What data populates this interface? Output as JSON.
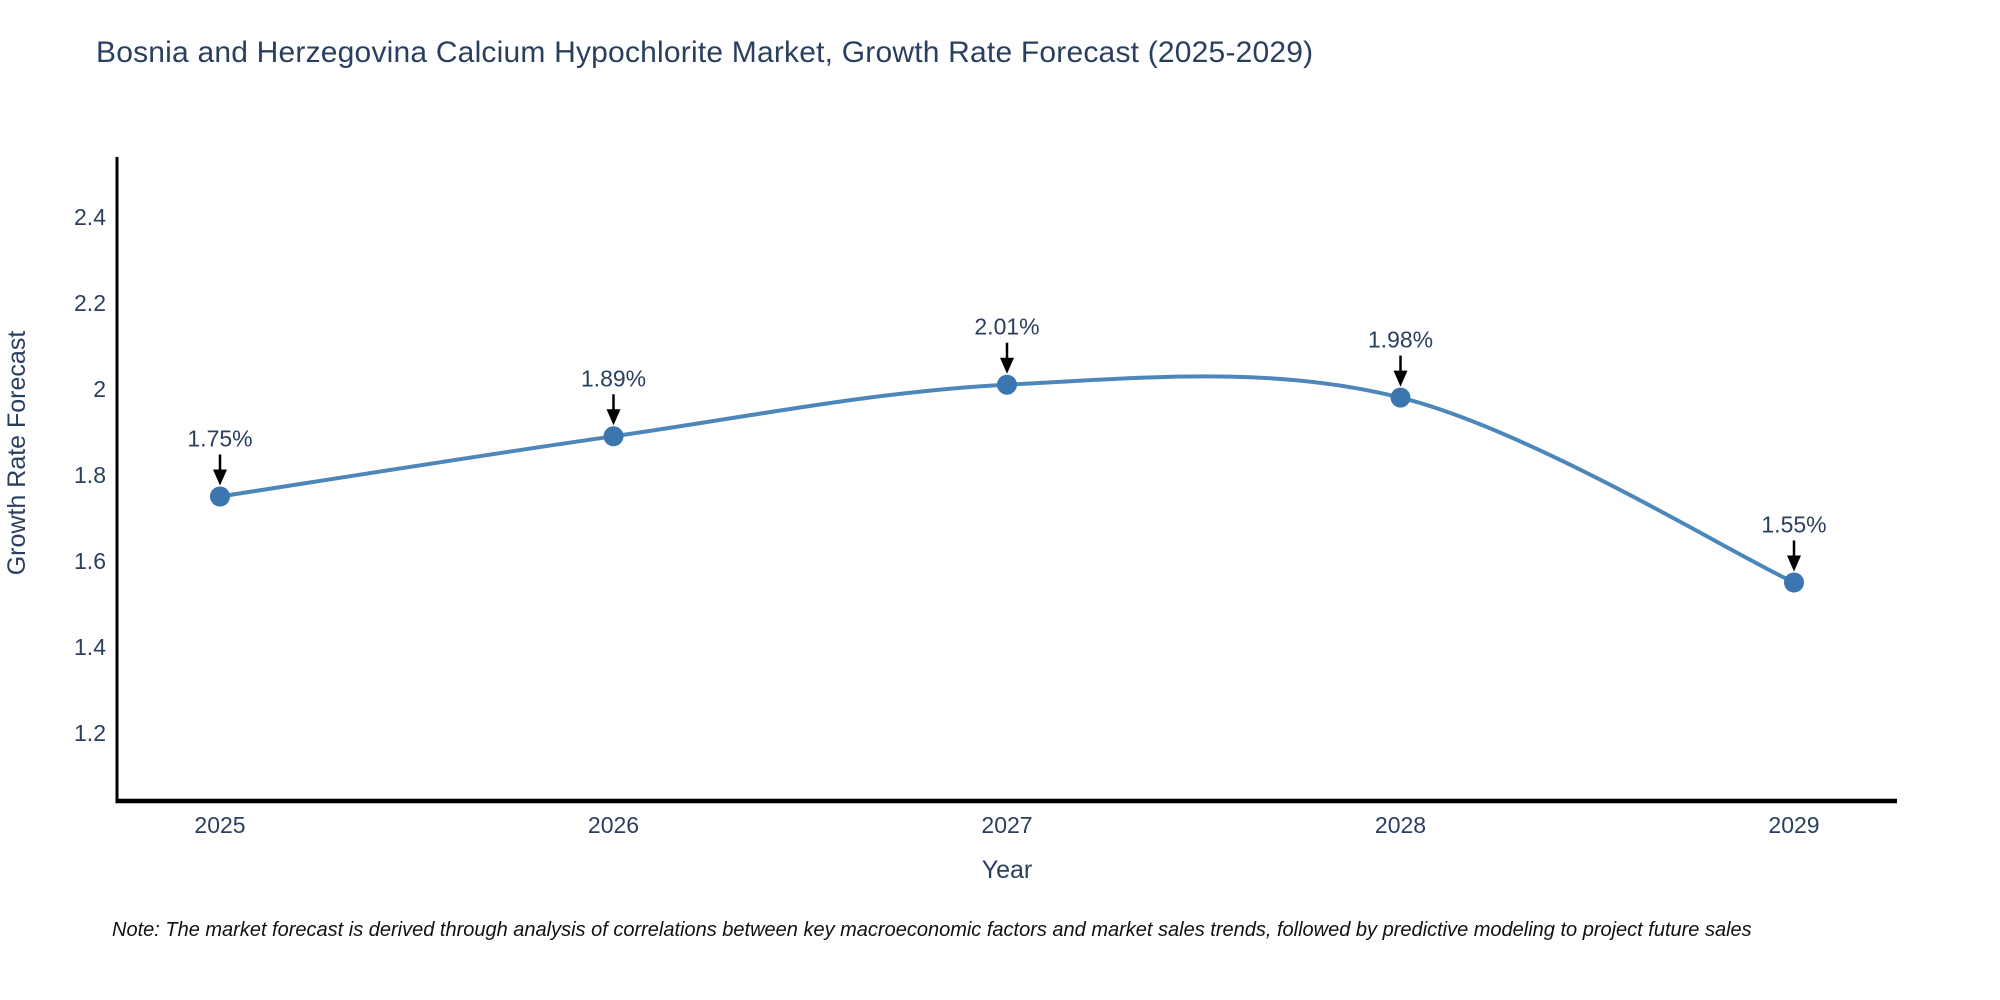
{
  "title": "Bosnia and Herzegovina Calcium Hypochlorite Market, Growth Rate Forecast (2025-2029)",
  "note": "Note: The market forecast is derived through analysis of correlations between key macroeconomic factors and market sales trends, followed by predictive modeling to project future sales",
  "colors": {
    "text": "#2a3f5f",
    "line": "#4d87ba",
    "marker": "#3b76b0",
    "axis": "#000000",
    "arrow": "#000000",
    "note_text": "#111111"
  },
  "chart_data": {
    "type": "line",
    "title": "Bosnia and Herzegovina Calcium Hypochlorite Market, Growth Rate Forecast (2025-2029)",
    "x": [
      2025,
      2026,
      2027,
      2028,
      2029
    ],
    "series": [
      {
        "name": "Growth Rate Forecast",
        "values": [
          1.75,
          1.89,
          2.01,
          1.98,
          1.55
        ],
        "point_labels": [
          "1.75%",
          "1.89%",
          "2.01%",
          "1.98%",
          "1.55%"
        ]
      }
    ],
    "xlabel": "Year",
    "ylabel": "Growth Rate Forecast",
    "yticks": [
      1.2,
      1.4,
      1.6,
      1.8,
      2,
      2.2,
      2.4
    ],
    "ylim": [
      1.042,
      2.537
    ],
    "grid": false,
    "legend_position": "none",
    "line_style": "smooth-spline",
    "annotation_style": "value-label-with-down-arrow"
  }
}
